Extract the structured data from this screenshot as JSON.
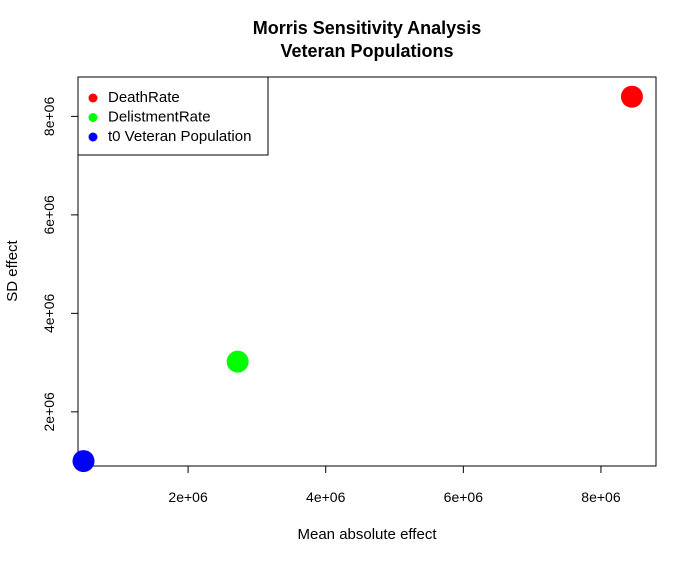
{
  "chart_data": {
    "type": "scatter",
    "title": "Morris Sensitivity Analysis",
    "subtitle": "Veteran Populations",
    "xlabel": "Mean absolute effect",
    "ylabel": "SD effect",
    "xlim": [
      400000,
      8800000
    ],
    "ylim": [
      900000,
      8800000
    ],
    "xticks": [
      2000000,
      4000000,
      6000000,
      8000000
    ],
    "xtick_labels": [
      "2e+06",
      "4e+06",
      "6e+06",
      "8e+06"
    ],
    "yticks": [
      2000000,
      4000000,
      6000000,
      8000000
    ],
    "ytick_labels": [
      "2e+06",
      "4e+06",
      "6e+06",
      "8e+06"
    ],
    "grid": false,
    "legend_position": "top-left",
    "series": [
      {
        "name": "DeathRate",
        "color": "#ff0000",
        "x": [
          8450000
        ],
        "y": [
          8400000
        ]
      },
      {
        "name": "DelistmentRate",
        "color": "#00ff00",
        "x": [
          2720000
        ],
        "y": [
          3020000
        ]
      },
      {
        "name": "t0 Veteran Population",
        "color": "#0000ff",
        "x": [
          480000
        ],
        "y": [
          1000000
        ]
      }
    ]
  }
}
